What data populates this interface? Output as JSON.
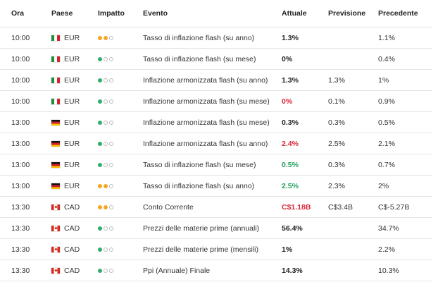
{
  "headers": {
    "time": "Ora",
    "country": "Paese",
    "impact": "Impatto",
    "event": "Evento",
    "actual": "Attuale",
    "forecast": "Previsione",
    "previous": "Precedente"
  },
  "colors": {
    "impact_high": "#f5a623",
    "impact_low": "#2eae6b",
    "negative": "#d6283b",
    "positive": "#1e9e5a"
  },
  "rows": [
    {
      "time": "10:00",
      "flag": "it",
      "currency": "EUR",
      "impact": 2,
      "event": "Tasso di inflazione flash (su anno)",
      "actual": "1.3%",
      "actual_state": "neutral",
      "forecast": "",
      "previous": "1.1%"
    },
    {
      "time": "10:00",
      "flag": "it",
      "currency": "EUR",
      "impact": 1,
      "event": "Tasso di inflazione flash (su mese)",
      "actual": "0%",
      "actual_state": "neutral",
      "forecast": "",
      "previous": "0.4%"
    },
    {
      "time": "10:00",
      "flag": "it",
      "currency": "EUR",
      "impact": 1,
      "event": "Inflazione armonizzata flash (su anno)",
      "actual": "1.3%",
      "actual_state": "neutral",
      "forecast": "1.3%",
      "previous": "1%"
    },
    {
      "time": "10:00",
      "flag": "it",
      "currency": "EUR",
      "impact": 1,
      "event": "Inflazione armonizzata flash (su mese)",
      "actual": "0%",
      "actual_state": "negative",
      "forecast": "0.1%",
      "previous": "0.9%"
    },
    {
      "time": "13:00",
      "flag": "de",
      "currency": "EUR",
      "impact": 1,
      "event": "Inflazione armonizzata flash (su mese)",
      "actual": "0.3%",
      "actual_state": "neutral",
      "forecast": "0.3%",
      "previous": "0.5%"
    },
    {
      "time": "13:00",
      "flag": "de",
      "currency": "EUR",
      "impact": 1,
      "event": "Inflazione armonizzata flash (su anno)",
      "actual": "2.4%",
      "actual_state": "negative",
      "forecast": "2.5%",
      "previous": "2.1%"
    },
    {
      "time": "13:00",
      "flag": "de",
      "currency": "EUR",
      "impact": 1,
      "event": "Tasso di inflazione flash (su mese)",
      "actual": "0.5%",
      "actual_state": "positive",
      "forecast": "0.3%",
      "previous": "0.7%"
    },
    {
      "time": "13:00",
      "flag": "de",
      "currency": "EUR",
      "impact": 2,
      "event": "Tasso di inflazione flash (su anno)",
      "actual": "2.5%",
      "actual_state": "positive",
      "forecast": "2.3%",
      "previous": "2%"
    },
    {
      "time": "13:30",
      "flag": "ca",
      "currency": "CAD",
      "impact": 2,
      "event": "Conto Corrente",
      "actual": "C$1.18B",
      "actual_state": "negative",
      "forecast": "C$3.4B",
      "previous": "C$-5.27B"
    },
    {
      "time": "13:30",
      "flag": "ca",
      "currency": "CAD",
      "impact": 1,
      "event": "Prezzi delle materie prime (annuali)",
      "actual": "56.4%",
      "actual_state": "neutral",
      "forecast": "",
      "previous": "34.7%"
    },
    {
      "time": "13:30",
      "flag": "ca",
      "currency": "CAD",
      "impact": 1,
      "event": "Prezzi delle materie prime (mensili)",
      "actual": "1%",
      "actual_state": "neutral",
      "forecast": "",
      "previous": "2.2%"
    },
    {
      "time": "13:30",
      "flag": "ca",
      "currency": "CAD",
      "impact": 1,
      "event": "Ppi (Annuale) Finale",
      "actual": "14.3%",
      "actual_state": "neutral",
      "forecast": "",
      "previous": "10.3%"
    }
  ]
}
